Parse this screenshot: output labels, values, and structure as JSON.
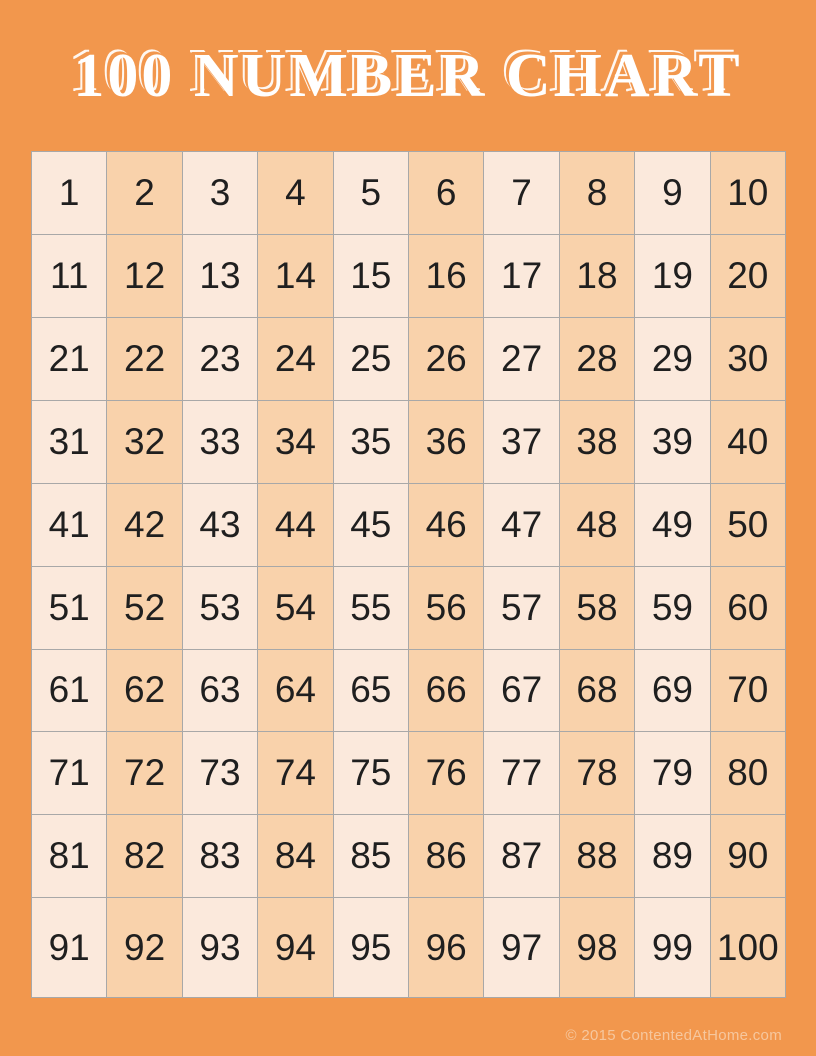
{
  "page": {
    "title": "100 NUMBER CHART"
  },
  "grid": {
    "rows": 10,
    "cols": 10,
    "numbers": [
      1,
      2,
      3,
      4,
      5,
      6,
      7,
      8,
      9,
      10,
      11,
      12,
      13,
      14,
      15,
      16,
      17,
      18,
      19,
      20,
      21,
      22,
      23,
      24,
      25,
      26,
      27,
      28,
      29,
      30,
      31,
      32,
      33,
      34,
      35,
      36,
      37,
      38,
      39,
      40,
      41,
      42,
      43,
      44,
      45,
      46,
      47,
      48,
      49,
      50,
      51,
      52,
      53,
      54,
      55,
      56,
      57,
      58,
      59,
      60,
      61,
      62,
      63,
      64,
      65,
      66,
      67,
      68,
      69,
      70,
      71,
      72,
      73,
      74,
      75,
      76,
      77,
      78,
      79,
      80,
      81,
      82,
      83,
      84,
      85,
      86,
      87,
      88,
      89,
      90,
      91,
      92,
      93,
      94,
      95,
      96,
      97,
      98,
      99,
      100
    ]
  },
  "footer": {
    "copyright": "© 2015 ContentedAtHome.com"
  },
  "colors": {
    "page_background": "#F2974D",
    "cell_light": "#FBE9DC",
    "cell_dark": "#F9D2AB",
    "grid_line": "#A8A8A8",
    "number_text": "#1F1F1F",
    "title_text": "#FFFFFF",
    "copyright_text": "#F6C79E"
  }
}
